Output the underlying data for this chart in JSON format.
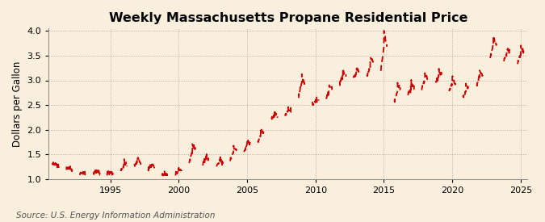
{
  "title": "Weekly Massachusetts Propane Residential Price",
  "ylabel": "Dollars per Gallon",
  "source_text": "Source: U.S. Energy Information Administration",
  "xlim": [
    1990.5,
    2025.5
  ],
  "ylim": [
    1.0,
    4.05
  ],
  "yticks": [
    1.0,
    1.5,
    2.0,
    2.5,
    3.0,
    3.5,
    4.0
  ],
  "xticks": [
    1995,
    2000,
    2005,
    2010,
    2015,
    2020,
    2025
  ],
  "background_color": "#faeedd",
  "plot_bg_color": "#faeedd",
  "line_color": "#cc0000",
  "title_fontsize": 11.5,
  "label_fontsize": 8.5,
  "tick_fontsize": 8,
  "source_fontsize": 7.5,
  "seasonal_data": {
    "1990": {
      "oct": 1.28,
      "peak": 1.3,
      "mar": 1.25
    },
    "1991": {
      "oct": 1.2,
      "peak": 1.22,
      "mar": 1.18
    },
    "1992": {
      "oct": 1.12,
      "peak": 1.14,
      "mar": 1.1
    },
    "1993": {
      "oct": 1.12,
      "peak": 1.15,
      "mar": 1.1
    },
    "1994": {
      "oct": 1.1,
      "peak": 1.13,
      "mar": 1.08
    },
    "1995": {
      "oct": 1.18,
      "peak": 1.35,
      "mar": 1.25
    },
    "1996": {
      "oct": 1.28,
      "peak": 1.42,
      "mar": 1.3
    },
    "1997": {
      "oct": 1.22,
      "peak": 1.3,
      "mar": 1.22
    },
    "1998": {
      "oct": 1.08,
      "peak": 1.12,
      "mar": 1.08
    },
    "1999": {
      "oct": 1.1,
      "peak": 1.2,
      "mar": 1.15
    },
    "2000": {
      "oct": 1.35,
      "peak": 1.7,
      "mar": 1.55
    },
    "2001": {
      "oct": 1.3,
      "peak": 1.48,
      "mar": 1.35
    },
    "2002": {
      "oct": 1.28,
      "peak": 1.4,
      "mar": 1.32
    },
    "2003": {
      "oct": 1.38,
      "peak": 1.65,
      "mar": 1.55
    },
    "2004": {
      "oct": 1.55,
      "peak": 1.8,
      "mar": 1.7
    },
    "2005": {
      "oct": 1.75,
      "peak": 2.0,
      "mar": 1.9
    },
    "2006": {
      "oct": 2.2,
      "peak": 2.35,
      "mar": 2.25
    },
    "2007": {
      "oct": 2.28,
      "peak": 2.45,
      "mar": 2.35
    },
    "2008": {
      "oct": 2.7,
      "peak": 3.1,
      "mar": 2.85
    },
    "2009": {
      "oct": 2.5,
      "peak": 2.65,
      "mar": 2.55
    },
    "2010": {
      "oct": 2.65,
      "peak": 2.9,
      "mar": 2.8
    },
    "2011": {
      "oct": 2.95,
      "peak": 3.2,
      "mar": 3.1
    },
    "2012": {
      "oct": 3.05,
      "peak": 3.25,
      "mar": 3.15
    },
    "2013": {
      "oct": 3.1,
      "peak": 3.45,
      "mar": 3.35
    },
    "2014": {
      "oct": 3.2,
      "peak": 4.0,
      "mar": 3.6
    },
    "2015": {
      "oct": 2.6,
      "peak": 2.95,
      "mar": 2.8
    },
    "2016": {
      "oct": 2.72,
      "peak": 2.95,
      "mar": 2.82
    },
    "2017": {
      "oct": 2.82,
      "peak": 3.15,
      "mar": 3.0
    },
    "2018": {
      "oct": 2.95,
      "peak": 3.2,
      "mar": 3.1
    },
    "2019": {
      "oct": 2.78,
      "peak": 3.05,
      "mar": 2.92
    },
    "2020": {
      "oct": 2.65,
      "peak": 2.9,
      "mar": 2.78
    },
    "2021": {
      "oct": 2.9,
      "peak": 3.2,
      "mar": 3.05
    },
    "2022": {
      "oct": 3.45,
      "peak": 3.9,
      "mar": 3.7
    },
    "2023": {
      "oct": 3.4,
      "peak": 3.65,
      "mar": 3.55
    },
    "2024": {
      "oct": 3.35,
      "peak": 3.65,
      "mar": 3.55
    }
  }
}
